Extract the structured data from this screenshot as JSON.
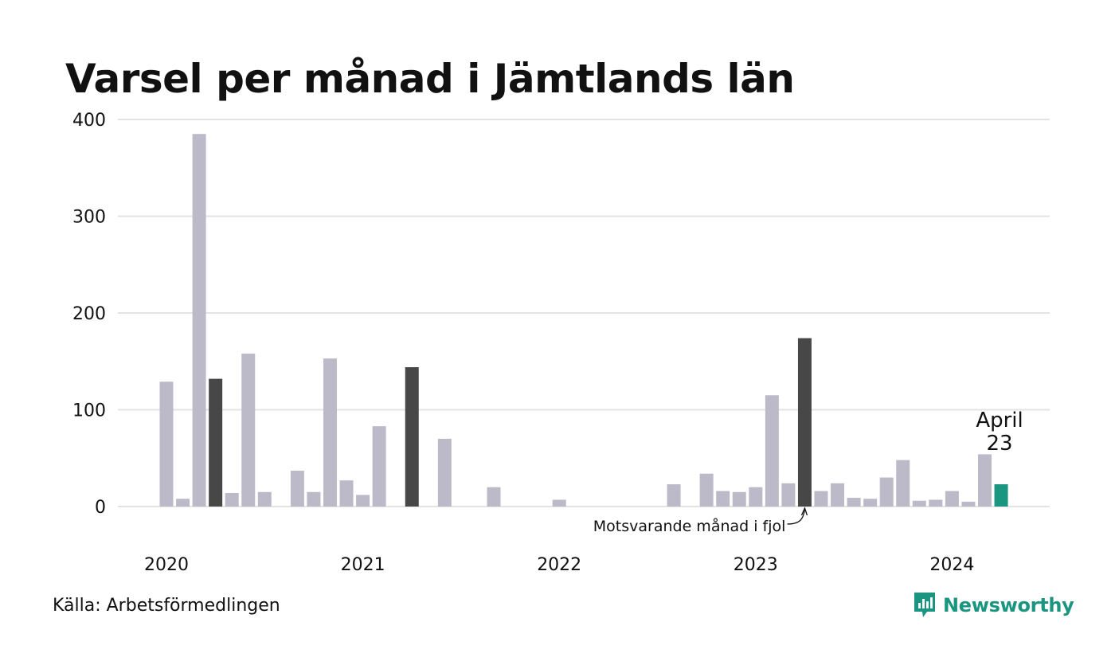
{
  "title": "Varsel per månad i Jämtlands län",
  "source": "Källa: Arbetsförmedlingen",
  "brand": "Newsworthy",
  "colors": {
    "bar": "#bcbac8",
    "highlight": "#474747",
    "current": "#1a9680",
    "grid": "#e3e3e6",
    "brand": "#1a9680"
  },
  "annotations": {
    "current_label_month": "April",
    "current_label_value": "23",
    "last_year_label": "Motsvarande månad i fjol"
  },
  "chart_data": {
    "type": "bar",
    "title": "Varsel per månad i Jämtlands län",
    "xlabel": "",
    "ylabel": "",
    "ylim": [
      0,
      400
    ],
    "yticks": [
      "0",
      "100",
      "200",
      "300",
      "400"
    ],
    "grid": true,
    "year_labels": [
      {
        "label": "2020",
        "month_index": 0
      },
      {
        "label": "2021",
        "month_index": 12
      },
      {
        "label": "2022",
        "month_index": 24
      },
      {
        "label": "2023",
        "month_index": 36
      },
      {
        "label": "2024",
        "month_index": 48
      }
    ],
    "categories": [
      "2020-01",
      "2020-02",
      "2020-03",
      "2020-04",
      "2020-05",
      "2020-06",
      "2020-07",
      "2020-08",
      "2020-09",
      "2020-10",
      "2020-11",
      "2020-12",
      "2021-01",
      "2021-02",
      "2021-03",
      "2021-04",
      "2021-05",
      "2021-06",
      "2021-07",
      "2021-08",
      "2021-09",
      "2021-10",
      "2021-11",
      "2021-12",
      "2022-01",
      "2022-02",
      "2022-03",
      "2022-04",
      "2022-05",
      "2022-06",
      "2022-07",
      "2022-08",
      "2022-09",
      "2022-10",
      "2022-11",
      "2022-12",
      "2023-01",
      "2023-02",
      "2023-03",
      "2023-04",
      "2023-05",
      "2023-06",
      "2023-07",
      "2023-08",
      "2023-09",
      "2023-10",
      "2023-11",
      "2023-12",
      "2024-01",
      "2024-02",
      "2024-03",
      "2024-04"
    ],
    "values": [
      129,
      8,
      385,
      132,
      14,
      158,
      15,
      0,
      37,
      15,
      153,
      27,
      12,
      83,
      0,
      144,
      0,
      70,
      0,
      0,
      20,
      0,
      0,
      0,
      7,
      0,
      0,
      0,
      0,
      0,
      0,
      23,
      0,
      34,
      16,
      15,
      20,
      115,
      24,
      174,
      16,
      24,
      9,
      8,
      30,
      48,
      6,
      7,
      16,
      5,
      54,
      23
    ],
    "highlight_indices": [
      3,
      15,
      39
    ],
    "current_index": 51
  }
}
